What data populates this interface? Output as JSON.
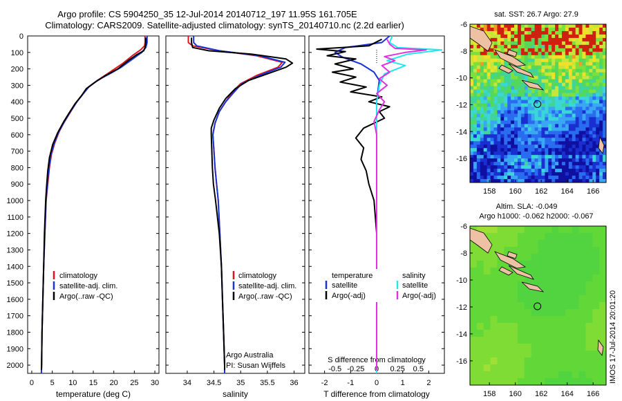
{
  "header": {
    "title_line1": "Argo profile: CS 5904250_35 12-Jul-2014 20140712_197 11.95S 161.705E",
    "title_line2": "Climatology: CARS2009. Satellite-adjusted climatology: synTS_20140710.nc (2.2d earlier)"
  },
  "colors": {
    "climatology": "#e0141e",
    "satellite": "#1a33d8",
    "argo": "#000000",
    "sal_satellite": "#22e8ee",
    "sal_argo": "#e030e0"
  },
  "depth_axis": {
    "min": 0,
    "max": 2050,
    "ticks": [
      0,
      100,
      200,
      300,
      400,
      500,
      600,
      700,
      800,
      900,
      1000,
      1100,
      1200,
      1300,
      1400,
      1500,
      1600,
      1700,
      1800,
      1900,
      2000
    ]
  },
  "chart_data": [
    {
      "id": "temperature",
      "type": "line",
      "xlabel": "temperature (deg C)",
      "xlim": [
        -1,
        31
      ],
      "xticks": [
        0,
        5,
        10,
        15,
        20,
        25,
        30
      ],
      "ylim": [
        0,
        2050
      ],
      "yreversed": true,
      "legend": {
        "items": [
          "climatology",
          "satellite-adj. clim.",
          "Argo(..raw -QC)"
        ]
      },
      "series": [
        {
          "name": "climatology",
          "color": "#e0141e",
          "points": [
            [
              27.6,
              0
            ],
            [
              27.6,
              40
            ],
            [
              27.5,
              60
            ],
            [
              26.5,
              85
            ],
            [
              24.5,
              120
            ],
            [
              22,
              170
            ],
            [
              19,
              220
            ],
            [
              16,
              270
            ],
            [
              13.8,
              310
            ],
            [
              12.5,
              350
            ],
            [
              11,
              400
            ],
            [
              9.5,
              460
            ],
            [
              8,
              520
            ],
            [
              6.7,
              580
            ],
            [
              5.6,
              650
            ],
            [
              4.8,
              720
            ],
            [
              4.3,
              800
            ],
            [
              3.9,
              900
            ],
            [
              3.5,
              1000
            ],
            [
              3.2,
              1200
            ],
            [
              2.9,
              1400
            ],
            [
              2.7,
              1600
            ],
            [
              2.5,
              1800
            ],
            [
              2.4,
              2000
            ],
            [
              2.35,
              2050
            ]
          ]
        },
        {
          "name": "satellite-adj. clim.",
          "color": "#1a33d8",
          "points": [
            [
              28.1,
              0
            ],
            [
              28.1,
              40
            ],
            [
              27.8,
              70
            ],
            [
              26.8,
              100
            ],
            [
              24.6,
              140
            ],
            [
              21.8,
              190
            ],
            [
              19,
              230
            ],
            [
              16,
              270
            ],
            [
              13.9,
              310
            ],
            [
              12.6,
              350
            ],
            [
              11,
              400
            ],
            [
              9.4,
              460
            ],
            [
              8,
              520
            ],
            [
              6.6,
              580
            ],
            [
              5.5,
              650
            ],
            [
              4.7,
              720
            ],
            [
              4.2,
              800
            ],
            [
              3.8,
              900
            ],
            [
              3.5,
              1000
            ],
            [
              3.2,
              1200
            ],
            [
              2.9,
              1400
            ],
            [
              2.7,
              1600
            ],
            [
              2.5,
              1800
            ],
            [
              2.4,
              2000
            ],
            [
              2.35,
              2050
            ]
          ]
        },
        {
          "name": "Argo(..raw -QC)",
          "color": "#000000",
          "points": [
            [
              27.8,
              10
            ],
            [
              27.8,
              40
            ],
            [
              27.6,
              70
            ],
            [
              27.3,
              90
            ],
            [
              25.5,
              115
            ],
            [
              23.5,
              150
            ],
            [
              21,
              200
            ],
            [
              18,
              240
            ],
            [
              15.5,
              280
            ],
            [
              13.3,
              320
            ],
            [
              12.2,
              360
            ],
            [
              10.6,
              410
            ],
            [
              9.3,
              460
            ],
            [
              7.8,
              520
            ],
            [
              6.3,
              590
            ],
            [
              5.1,
              660
            ],
            [
              4.3,
              740
            ],
            [
              3.9,
              820
            ],
            [
              3.6,
              920
            ],
            [
              3.4,
              1000
            ],
            [
              3.1,
              1200
            ],
            [
              2.9,
              1400
            ],
            [
              2.7,
              1600
            ],
            [
              2.5,
              1800
            ],
            [
              2.4,
              2000
            ],
            [
              2.35,
              2030
            ]
          ]
        }
      ]
    },
    {
      "id": "salinity",
      "type": "line",
      "xlabel": "salinity",
      "xlim": [
        33.6,
        36.2
      ],
      "xticks": [
        34,
        34.5,
        35,
        35.5,
        36
      ],
      "ylim": [
        0,
        2050
      ],
      "yreversed": true,
      "legend": {
        "items": [
          "climatology",
          "satellite-adj. clim.",
          "Argo(..raw -QC)"
        ]
      },
      "annotation": [
        "Argo Australia",
        "PI: Susan Wijffels"
      ],
      "series": [
        {
          "name": "climatology",
          "color": "#e0141e",
          "points": [
            [
              34.02,
              0
            ],
            [
              34.02,
              40
            ],
            [
              34.1,
              60
            ],
            [
              34.6,
              90
            ],
            [
              35.3,
              120
            ],
            [
              35.78,
              160
            ],
            [
              35.7,
              190
            ],
            [
              35.3,
              240
            ],
            [
              35.0,
              290
            ],
            [
              34.85,
              340
            ],
            [
              34.72,
              400
            ],
            [
              34.6,
              460
            ],
            [
              34.52,
              530
            ],
            [
              34.48,
              600
            ],
            [
              34.5,
              700
            ],
            [
              34.52,
              800
            ],
            [
              34.55,
              900
            ],
            [
              34.58,
              1000
            ],
            [
              34.61,
              1200
            ],
            [
              34.64,
              1400
            ],
            [
              34.66,
              1600
            ],
            [
              34.68,
              1800
            ],
            [
              34.7,
              2000
            ],
            [
              34.7,
              2050
            ]
          ]
        },
        {
          "name": "satellite-adj. clim.",
          "color": "#1a33d8",
          "points": [
            [
              34.12,
              0
            ],
            [
              34.12,
              40
            ],
            [
              34.18,
              60
            ],
            [
              34.6,
              90
            ],
            [
              35.35,
              120
            ],
            [
              35.83,
              160
            ],
            [
              35.75,
              190
            ],
            [
              35.35,
              240
            ],
            [
              35.02,
              290
            ],
            [
              34.88,
              340
            ],
            [
              34.72,
              400
            ],
            [
              34.6,
              460
            ],
            [
              34.52,
              530
            ],
            [
              34.48,
              600
            ],
            [
              34.5,
              700
            ],
            [
              34.52,
              800
            ],
            [
              34.55,
              900
            ],
            [
              34.58,
              1000
            ],
            [
              34.61,
              1200
            ],
            [
              34.64,
              1400
            ],
            [
              34.66,
              1600
            ],
            [
              34.68,
              1800
            ],
            [
              34.7,
              2000
            ],
            [
              34.7,
              2050
            ]
          ]
        },
        {
          "name": "Argo(..raw -QC)",
          "color": "#000000",
          "points": [
            [
              34.08,
              10
            ],
            [
              34.08,
              40
            ],
            [
              34.1,
              70
            ],
            [
              34.4,
              90
            ],
            [
              35.2,
              110
            ],
            [
              35.85,
              140
            ],
            [
              35.97,
              165
            ],
            [
              35.85,
              190
            ],
            [
              35.5,
              230
            ],
            [
              35.15,
              270
            ],
            [
              34.9,
              320
            ],
            [
              34.72,
              380
            ],
            [
              34.6,
              440
            ],
            [
              34.5,
              510
            ],
            [
              34.45,
              560
            ],
            [
              34.45,
              600
            ],
            [
              34.46,
              700
            ],
            [
              34.47,
              800
            ],
            [
              34.49,
              900
            ],
            [
              34.53,
              1000
            ],
            [
              34.6,
              1200
            ],
            [
              34.64,
              1400
            ],
            [
              34.66,
              1600
            ],
            [
              34.68,
              1800
            ],
            [
              34.7,
              2000
            ],
            [
              34.7,
              2030
            ]
          ]
        }
      ]
    },
    {
      "id": "difference",
      "type": "line",
      "xlabel": "T difference from climatology",
      "xlabel_top": "S difference from climatology",
      "xlim": [
        -2.6,
        2.6
      ],
      "xticks": [
        -2,
        -1,
        0,
        1,
        2
      ],
      "xticks_top": [
        -0.5,
        -0.25,
        0,
        0.25,
        0.5
      ],
      "ylim": [
        0,
        2050
      ],
      "yreversed": true,
      "legend": {
        "temperature_heading": "temperature",
        "salinity_heading": "salinity",
        "items": [
          "satellite",
          "Argo(-adj)",
          "satellite",
          "Argo(-adj)"
        ]
      },
      "series": [
        {
          "name": "temperature satellite",
          "color": "#1a33d8",
          "points": [
            [
              0.5,
              0
            ],
            [
              0.2,
              40
            ],
            [
              -1.2,
              70
            ],
            [
              -1.6,
              100
            ],
            [
              -1.3,
              130
            ],
            [
              -0.6,
              170
            ],
            [
              -0.1,
              220
            ],
            [
              0.1,
              270
            ],
            [
              0.05,
              330
            ],
            [
              0,
              400
            ],
            [
              0,
              600
            ],
            [
              0,
              1000
            ],
            [
              0,
              1500
            ],
            [
              0,
              2050
            ]
          ]
        },
        {
          "name": "temperature Argo(-adj)",
          "color": "#000000",
          "points": [
            [
              0.2,
              20
            ],
            [
              -0.3,
              60
            ],
            [
              -2.3,
              80
            ],
            [
              -1.2,
              95
            ],
            [
              -1.9,
              120
            ],
            [
              -0.8,
              140
            ],
            [
              -1.6,
              170
            ],
            [
              -0.9,
              200
            ],
            [
              -1.7,
              220
            ],
            [
              -0.8,
              250
            ],
            [
              -1.4,
              280
            ],
            [
              -0.4,
              310
            ],
            [
              -1.0,
              340
            ],
            [
              0.2,
              370
            ],
            [
              -0.3,
              400
            ],
            [
              0.5,
              430
            ],
            [
              0.1,
              460
            ],
            [
              0.3,
              500
            ],
            [
              -0.5,
              560
            ],
            [
              -0.8,
              620
            ],
            [
              -0.5,
              680
            ],
            [
              -0.6,
              750
            ],
            [
              -0.4,
              820
            ],
            [
              -0.3,
              900
            ],
            [
              -0.1,
              1000
            ],
            [
              0,
              1200
            ],
            [
              0,
              2030
            ]
          ]
        },
        {
          "name": "salinity satellite",
          "color": "#22e8ee",
          "points": [
            [
              0.6,
              0
            ],
            [
              0.5,
              40
            ],
            [
              0.8,
              70
            ],
            [
              2.5,
              85
            ],
            [
              1.2,
              110
            ],
            [
              0.4,
              150
            ],
            [
              1.1,
              180
            ],
            [
              0.3,
              230
            ],
            [
              0.1,
              300
            ],
            [
              0,
              400
            ],
            [
              0,
              800
            ],
            [
              0,
              2050
            ]
          ]
        },
        {
          "name": "salinity Argo(-adj)",
          "color": "#e030e0",
          "points": [
            [
              0.4,
              20
            ],
            [
              0.5,
              50
            ],
            [
              0.7,
              75
            ],
            [
              1.9,
              85
            ],
            [
              1.1,
              100
            ],
            [
              0.3,
              125
            ],
            [
              0.7,
              150
            ],
            [
              0.2,
              180
            ],
            [
              0.5,
              220
            ],
            [
              0.1,
              260
            ],
            [
              0.4,
              300
            ],
            [
              0.0,
              350
            ],
            [
              0.3,
              400
            ],
            [
              0.1,
              450
            ],
            [
              -0.1,
              520
            ],
            [
              0.0,
              600
            ],
            [
              0,
              700
            ],
            [
              0,
              1000
            ],
            [
              0,
              2030
            ]
          ]
        }
      ]
    },
    {
      "id": "sst_map",
      "type": "heatmap",
      "title": "sat. SST: 26.7  Argo: 27.9",
      "xlim": [
        156.5,
        167
      ],
      "ylim": [
        -17.8,
        -6
      ],
      "xticks": [
        158,
        160,
        162,
        164,
        166
      ],
      "yticks": [
        -6,
        -8,
        -10,
        -12,
        -14,
        -16
      ],
      "marker": {
        "lon": 161.705,
        "lat": -11.95
      }
    },
    {
      "id": "sla_map",
      "type": "heatmap",
      "title_line1": "Altim. SLA: -0.049",
      "title_line2": "Argo h1000: -0.062  h2000: -0.067",
      "xlim": [
        156.5,
        167
      ],
      "ylim": [
        -17.8,
        -6
      ],
      "xticks": [
        158,
        160,
        162,
        164,
        166
      ],
      "yticks": [
        -6,
        -8,
        -10,
        -12,
        -14,
        -16
      ],
      "marker": {
        "lon": 161.705,
        "lat": -11.95
      }
    }
  ],
  "stamp": "IMOS 17-Jul-2014 20:01:20"
}
